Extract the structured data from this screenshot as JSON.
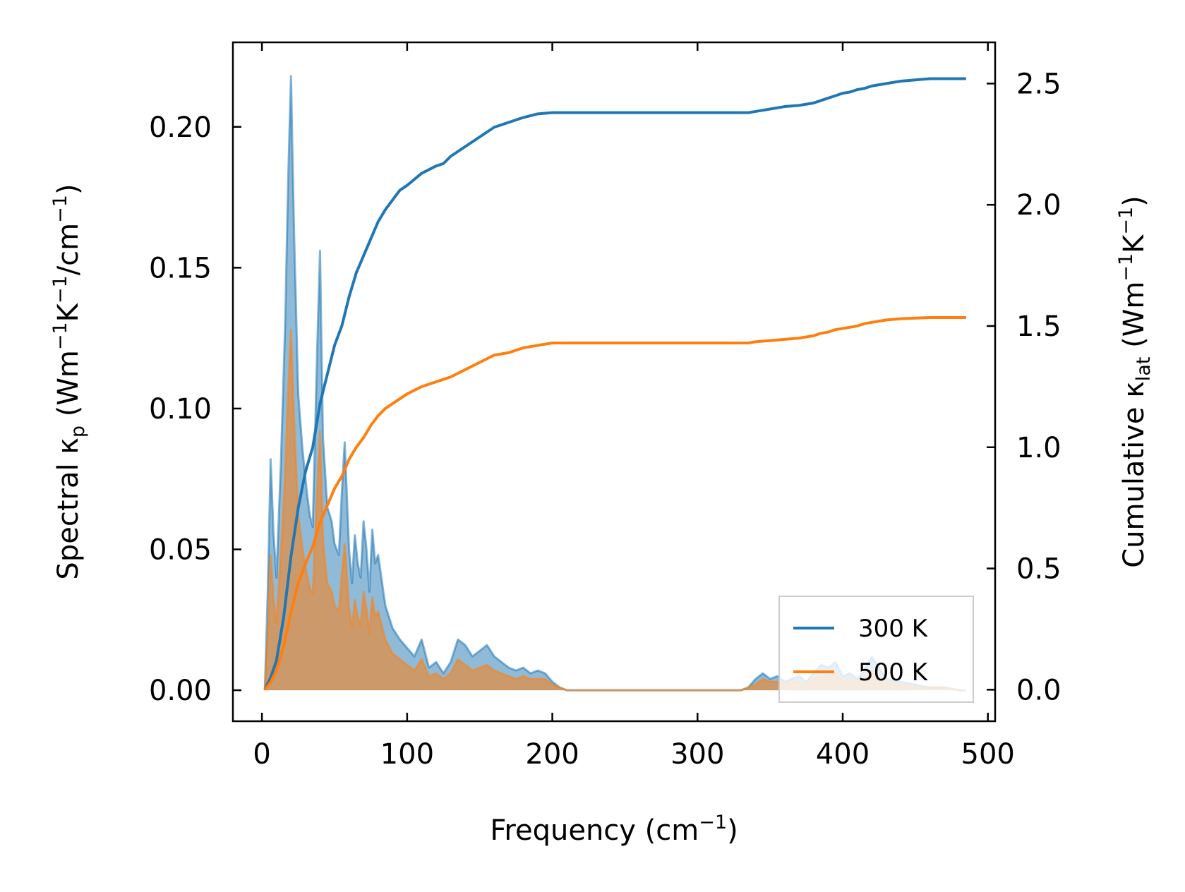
{
  "chart_data": {
    "type": "line",
    "xlabel": {
      "base": "Frequency (cm",
      "sup": "−1",
      "tail": ")"
    },
    "ylabel_left": {
      "prefix": "Spectral κ",
      "sub": "p",
      "mid1": " (Wm",
      "sup1": "−1",
      "mid2": "K",
      "sup2": "−1",
      "mid3": "/cm",
      "sup3": "−1",
      "tail": ")"
    },
    "ylabel_right": {
      "prefix": "Cumulative κ",
      "sub": "lat",
      "mid1": " (Wm",
      "sup1": "−1",
      "mid2": "K",
      "sup2": "−1",
      "tail": ")"
    },
    "xlim": [
      -20,
      505
    ],
    "ylim_left": [
      -0.011,
      0.23
    ],
    "ylim_right": [
      -0.13,
      2.67
    ],
    "xticks": [
      0,
      100,
      200,
      300,
      400,
      500
    ],
    "xtick_labels": [
      "0",
      "100",
      "200",
      "300",
      "400",
      "500"
    ],
    "yticks_left": [
      0.0,
      0.05,
      0.1,
      0.15,
      0.2
    ],
    "ytick_labels_left": [
      "0.00",
      "0.05",
      "0.10",
      "0.15",
      "0.20"
    ],
    "yticks_right": [
      0.0,
      0.5,
      1.0,
      1.5,
      2.0,
      2.5
    ],
    "ytick_labels_right": [
      "0.0",
      "0.5",
      "1.0",
      "1.5",
      "2.0",
      "2.5"
    ],
    "legend": {
      "position": "lower-right",
      "entries": [
        "300 K",
        "500 K"
      ]
    },
    "colors": {
      "300 K": "#1f77b4",
      "500 K": "#ff7f0e"
    },
    "series": [
      {
        "name": "300 K",
        "axis": "left",
        "kind": "spectral",
        "x": [
          2,
          4,
          6,
          8,
          10,
          13,
          16,
          18,
          20,
          22,
          25,
          28,
          31,
          33,
          35,
          38,
          40,
          42,
          45,
          48,
          50,
          53,
          55,
          57,
          60,
          62,
          64,
          66,
          68,
          70,
          72,
          74,
          76,
          78,
          80,
          85,
          90,
          95,
          100,
          105,
          110,
          115,
          120,
          125,
          130,
          135,
          140,
          145,
          150,
          155,
          160,
          165,
          170,
          175,
          180,
          185,
          190,
          195,
          200,
          205,
          210,
          215,
          220,
          330,
          335,
          340,
          345,
          350,
          355,
          360,
          365,
          370,
          375,
          380,
          385,
          390,
          395,
          400,
          405,
          410,
          415,
          420,
          425,
          430,
          440,
          450,
          460,
          470,
          480,
          485
        ],
        "values": [
          0.0,
          0.035,
          0.082,
          0.055,
          0.04,
          0.08,
          0.13,
          0.18,
          0.218,
          0.165,
          0.105,
          0.085,
          0.07,
          0.062,
          0.058,
          0.12,
          0.156,
          0.09,
          0.065,
          0.06,
          0.052,
          0.048,
          0.07,
          0.088,
          0.05,
          0.038,
          0.055,
          0.045,
          0.04,
          0.06,
          0.05,
          0.035,
          0.057,
          0.045,
          0.048,
          0.03,
          0.022,
          0.018,
          0.015,
          0.012,
          0.018,
          0.008,
          0.01,
          0.006,
          0.01,
          0.018,
          0.016,
          0.012,
          0.014,
          0.016,
          0.012,
          0.01,
          0.008,
          0.007,
          0.008,
          0.006,
          0.007,
          0.006,
          0.003,
          0.001,
          0.0,
          0.0,
          0.0,
          0.0,
          0.001,
          0.004,
          0.006,
          0.004,
          0.005,
          0.003,
          0.004,
          0.005,
          0.003,
          0.006,
          0.009,
          0.008,
          0.01,
          0.005,
          0.006,
          0.004,
          0.007,
          0.012,
          0.008,
          0.004,
          0.003,
          0.002,
          0.001,
          0.001,
          0.0,
          0.0
        ]
      },
      {
        "name": "500 K",
        "axis": "left",
        "kind": "spectral",
        "x": [
          2,
          4,
          6,
          8,
          10,
          13,
          16,
          18,
          20,
          22,
          25,
          28,
          31,
          33,
          35,
          38,
          40,
          42,
          45,
          48,
          50,
          53,
          55,
          57,
          60,
          62,
          64,
          66,
          68,
          70,
          72,
          74,
          76,
          78,
          80,
          85,
          90,
          95,
          100,
          105,
          110,
          115,
          120,
          125,
          130,
          135,
          140,
          145,
          150,
          155,
          160,
          165,
          170,
          175,
          180,
          185,
          190,
          195,
          200,
          205,
          210,
          215,
          220,
          330,
          335,
          340,
          345,
          350,
          355,
          360,
          365,
          370,
          375,
          380,
          385,
          390,
          395,
          400,
          405,
          410,
          415,
          420,
          425,
          430,
          440,
          450,
          460,
          470,
          480,
          485
        ],
        "values": [
          0.0,
          0.02,
          0.048,
          0.032,
          0.024,
          0.048,
          0.076,
          0.105,
          0.128,
          0.097,
          0.062,
          0.05,
          0.041,
          0.036,
          0.034,
          0.07,
          0.092,
          0.053,
          0.038,
          0.035,
          0.03,
          0.028,
          0.041,
          0.052,
          0.029,
          0.022,
          0.032,
          0.026,
          0.023,
          0.035,
          0.029,
          0.02,
          0.033,
          0.026,
          0.028,
          0.018,
          0.013,
          0.011,
          0.009,
          0.007,
          0.011,
          0.005,
          0.006,
          0.004,
          0.006,
          0.011,
          0.009,
          0.007,
          0.008,
          0.009,
          0.007,
          0.006,
          0.005,
          0.004,
          0.005,
          0.004,
          0.004,
          0.004,
          0.002,
          0.001,
          0.0,
          0.0,
          0.0,
          0.0,
          0.001,
          0.002,
          0.004,
          0.003,
          0.003,
          0.002,
          0.003,
          0.003,
          0.002,
          0.004,
          0.005,
          0.005,
          0.006,
          0.003,
          0.004,
          0.003,
          0.004,
          0.007,
          0.005,
          0.003,
          0.002,
          0.001,
          0.001,
          0.001,
          0.0,
          0.0
        ]
      },
      {
        "name": "300 K",
        "axis": "right",
        "kind": "cumulative",
        "x": [
          2,
          6,
          10,
          15,
          20,
          25,
          30,
          35,
          40,
          45,
          50,
          55,
          60,
          65,
          70,
          75,
          80,
          85,
          90,
          95,
          100,
          110,
          120,
          125,
          130,
          140,
          150,
          160,
          170,
          180,
          190,
          200,
          210,
          230,
          260,
          300,
          335,
          340,
          350,
          360,
          370,
          375,
          380,
          385,
          390,
          395,
          400,
          405,
          410,
          415,
          420,
          430,
          440,
          460,
          485
        ],
        "values": [
          0.0,
          0.05,
          0.12,
          0.3,
          0.55,
          0.75,
          0.9,
          1.0,
          1.18,
          1.3,
          1.42,
          1.5,
          1.62,
          1.72,
          1.79,
          1.86,
          1.93,
          1.98,
          2.02,
          2.06,
          2.08,
          2.13,
          2.16,
          2.17,
          2.2,
          2.24,
          2.28,
          2.32,
          2.34,
          2.36,
          2.375,
          2.38,
          2.38,
          2.38,
          2.38,
          2.38,
          2.38,
          2.385,
          2.395,
          2.405,
          2.41,
          2.415,
          2.42,
          2.43,
          2.44,
          2.45,
          2.46,
          2.465,
          2.475,
          2.48,
          2.49,
          2.5,
          2.51,
          2.52,
          2.52
        ]
      },
      {
        "name": "500 K",
        "axis": "right",
        "kind": "cumulative",
        "x": [
          2,
          6,
          10,
          15,
          20,
          25,
          30,
          35,
          40,
          45,
          50,
          55,
          60,
          65,
          70,
          75,
          80,
          85,
          90,
          95,
          100,
          110,
          120,
          125,
          130,
          140,
          150,
          160,
          170,
          180,
          190,
          200,
          210,
          230,
          260,
          300,
          335,
          340,
          350,
          360,
          370,
          375,
          380,
          385,
          390,
          395,
          400,
          405,
          410,
          415,
          420,
          430,
          440,
          460,
          485
        ],
        "values": [
          0.0,
          0.03,
          0.08,
          0.18,
          0.32,
          0.44,
          0.52,
          0.59,
          0.69,
          0.76,
          0.83,
          0.88,
          0.95,
          1.0,
          1.04,
          1.09,
          1.13,
          1.16,
          1.18,
          1.2,
          1.22,
          1.25,
          1.27,
          1.28,
          1.29,
          1.32,
          1.35,
          1.38,
          1.39,
          1.41,
          1.42,
          1.43,
          1.43,
          1.43,
          1.43,
          1.43,
          1.43,
          1.435,
          1.44,
          1.445,
          1.45,
          1.455,
          1.46,
          1.47,
          1.475,
          1.485,
          1.49,
          1.495,
          1.5,
          1.51,
          1.515,
          1.525,
          1.53,
          1.535,
          1.535
        ]
      }
    ]
  }
}
